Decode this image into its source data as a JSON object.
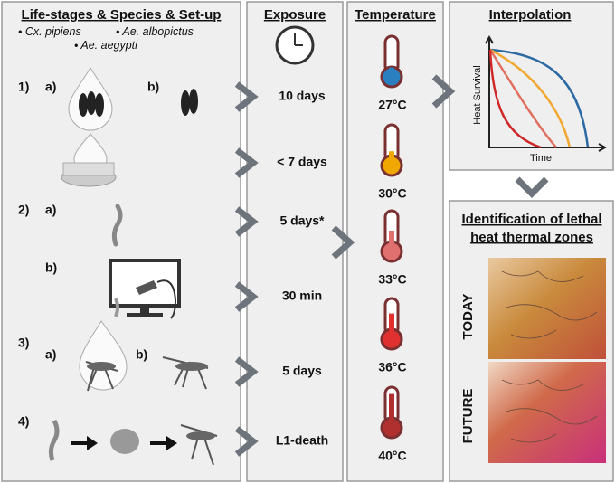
{
  "setup": {
    "title": "Life-stages & Species & Set-up",
    "species": [
      "Cx. pipiens",
      "Ae. albopictus",
      "Ae. aegypti"
    ],
    "labels": [
      "1)",
      "a)",
      "b)",
      "2)",
      "a)",
      "b)",
      "3)",
      "a)",
      "b)",
      "4)"
    ]
  },
  "exposure": {
    "title": "Exposure",
    "items": [
      "10 days",
      "< 7 days",
      "5 days*",
      "30 min",
      "5 days",
      "L1-death"
    ]
  },
  "temperature": {
    "title": "Temperature",
    "items": [
      "27°C",
      "30°C",
      "33°C",
      "36°C",
      "40°C"
    ]
  },
  "interpolation": {
    "title": "Interpolation",
    "y_label": "Heat Survival",
    "x_label": "Time"
  },
  "identification": {
    "title_lines": [
      "Identification of lethal",
      "heat thermal zones"
    ],
    "maps": [
      "TODAY",
      "FUTURE"
    ]
  }
}
